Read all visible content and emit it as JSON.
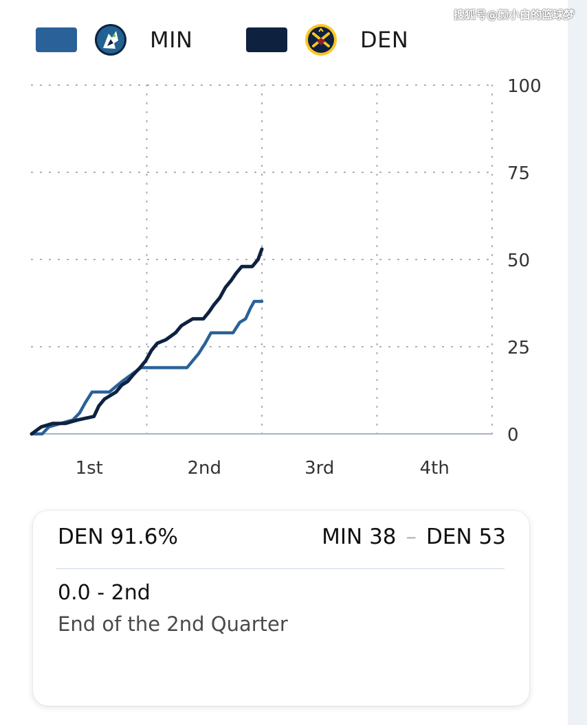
{
  "watermark": "搜狐号@颜小白的篮球梦",
  "legend": {
    "teams": [
      {
        "abbr": "MIN",
        "color": "#2a6199",
        "logo_icon": "timberwolves-logo-icon"
      },
      {
        "abbr": "DEN",
        "color": "#0e2240",
        "logo_icon": "nuggets-logo-icon"
      }
    ]
  },
  "chart_data": {
    "type": "line",
    "title": "",
    "xlabel": "",
    "ylabel": "",
    "x_unit": "game minute",
    "xlim": [
      0,
      48
    ],
    "ylim": [
      0,
      100
    ],
    "y_axis_position": "right",
    "y_ticks": [
      0,
      25,
      50,
      75,
      100
    ],
    "x_tick_labels": [
      "1st",
      "2nd",
      "3rd",
      "4th"
    ],
    "grid": "dotted",
    "legend_position": "top",
    "series": [
      {
        "name": "MIN",
        "color": "#2a6199",
        "points": [
          [
            0,
            0
          ],
          [
            1.1,
            0
          ],
          [
            1.8,
            2
          ],
          [
            3.0,
            3
          ],
          [
            4.3,
            4
          ],
          [
            5.0,
            6
          ],
          [
            5.6,
            9
          ],
          [
            6.3,
            12
          ],
          [
            8.1,
            12
          ],
          [
            9.4,
            15
          ],
          [
            10.4,
            17
          ],
          [
            11.4,
            19
          ],
          [
            16.2,
            19
          ],
          [
            16.8,
            21
          ],
          [
            17.4,
            23
          ],
          [
            18.1,
            26
          ],
          [
            18.7,
            29
          ],
          [
            21.0,
            29
          ],
          [
            21.7,
            32
          ],
          [
            22.3,
            33
          ],
          [
            22.8,
            36
          ],
          [
            23.2,
            38
          ],
          [
            24.0,
            38
          ]
        ]
      },
      {
        "name": "DEN",
        "color": "#0e2240",
        "points": [
          [
            0,
            0
          ],
          [
            1.0,
            2
          ],
          [
            2.2,
            3
          ],
          [
            3.5,
            3
          ],
          [
            4.8,
            4
          ],
          [
            6.5,
            5
          ],
          [
            7.0,
            8
          ],
          [
            7.6,
            10
          ],
          [
            8.8,
            12
          ],
          [
            9.4,
            14
          ],
          [
            10.0,
            15
          ],
          [
            10.6,
            17
          ],
          [
            11.3,
            19
          ],
          [
            11.9,
            21
          ],
          [
            12.5,
            24
          ],
          [
            13.1,
            26
          ],
          [
            14.0,
            27
          ],
          [
            15.0,
            29
          ],
          [
            15.6,
            31
          ],
          [
            16.2,
            32
          ],
          [
            16.8,
            33
          ],
          [
            17.9,
            33
          ],
          [
            18.5,
            35
          ],
          [
            19.0,
            37
          ],
          [
            19.6,
            39
          ],
          [
            20.2,
            42
          ],
          [
            20.8,
            44
          ],
          [
            21.3,
            46
          ],
          [
            21.9,
            48
          ],
          [
            23.0,
            48
          ],
          [
            23.6,
            50
          ],
          [
            24.0,
            53
          ]
        ]
      }
    ]
  },
  "card": {
    "probability": "DEN 91.6%",
    "score_away": "MIN 38",
    "score_separator": "–",
    "score_home": "DEN 53",
    "clock": "0.0 - 2nd",
    "description": "End of the 2nd Quarter"
  }
}
